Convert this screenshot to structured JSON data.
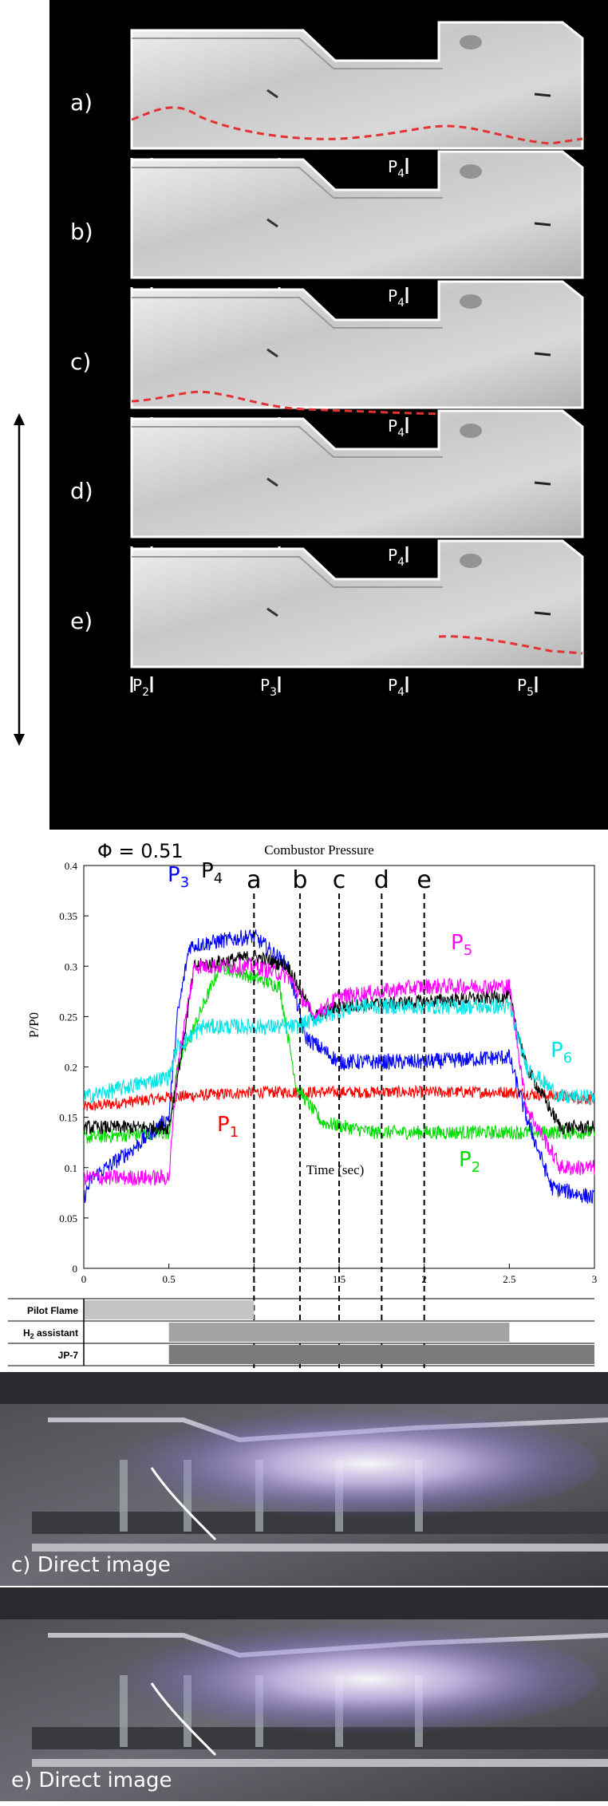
{
  "schlieren": {
    "panels": [
      {
        "label": "a)",
        "flame_front": true
      },
      {
        "label": "b)",
        "flame_front": false
      },
      {
        "label": "c)",
        "flame_front": true
      },
      {
        "label": "d)",
        "flame_front": false
      },
      {
        "label": "e)",
        "flame_front": true
      }
    ],
    "probe_labels": [
      {
        "base": "P",
        "sub": "2"
      },
      {
        "base": "P",
        "sub": "3"
      },
      {
        "base": "P",
        "sub": "4"
      },
      {
        "base": "P",
        "sub": "5"
      }
    ],
    "colors": {
      "background": "#000000",
      "flame_front": "#e23232",
      "probe_ticks": "#ffffff"
    }
  },
  "pressure_chart": {
    "phi_label": "Φ = 0.51",
    "colors": {
      "P1": "#ff0000",
      "P2": "#00dd00",
      "P3": "#0000ff",
      "P4": "#000000",
      "P5": "#ff00ff",
      "P6": "#00e5e5"
    }
  },
  "chart_data": {
    "type": "line",
    "title": "Combustor Pressure",
    "xlabel": "Time (sec)",
    "ylabel": "P/P0",
    "xlim": [
      0,
      3
    ],
    "ylim": [
      0,
      0.4
    ],
    "xticks": [
      "0",
      "0.5",
      "1",
      "1.5",
      "2",
      "2.5",
      "3"
    ],
    "yticks": [
      "0",
      "0.05",
      "0.1",
      "0.15",
      "0.2",
      "0.25",
      "0.3",
      "0.35",
      "0.4"
    ],
    "grid": false,
    "series": [
      {
        "name": "P1",
        "label_base": "P",
        "label_sub": "1",
        "color": "#ff0000",
        "noise": 0.006,
        "x": [
          0,
          0.5,
          1.0,
          1.5,
          2.0,
          2.5,
          3.0
        ],
        "y": [
          0.16,
          0.17,
          0.175,
          0.175,
          0.175,
          0.175,
          0.168
        ]
      },
      {
        "name": "P2",
        "label_base": "P",
        "label_sub": "2",
        "color": "#00dd00",
        "noise": 0.007,
        "x": [
          0,
          0.5,
          0.55,
          0.8,
          1.15,
          1.25,
          1.4,
          1.7,
          2.0,
          2.5,
          3.0
        ],
        "y": [
          0.13,
          0.135,
          0.2,
          0.3,
          0.28,
          0.18,
          0.145,
          0.135,
          0.135,
          0.135,
          0.135
        ]
      },
      {
        "name": "P3",
        "label_base": "P",
        "label_sub": "3",
        "color": "#0000ff",
        "noise": 0.008,
        "x": [
          0,
          0.05,
          0.3,
          0.5,
          0.55,
          0.62,
          0.8,
          1.0,
          1.2,
          1.3,
          1.5,
          2.0,
          2.5,
          2.6,
          2.75,
          3.0
        ],
        "y": [
          0.07,
          0.09,
          0.12,
          0.15,
          0.25,
          0.32,
          0.325,
          0.33,
          0.3,
          0.23,
          0.205,
          0.205,
          0.21,
          0.15,
          0.08,
          0.07
        ]
      },
      {
        "name": "P4",
        "label_base": "P",
        "label_sub": "4",
        "color": "#000000",
        "noise": 0.007,
        "x": [
          0,
          0.5,
          0.58,
          0.65,
          1.0,
          1.2,
          1.35,
          1.5,
          2.0,
          2.5,
          2.6,
          2.8,
          3.0
        ],
        "y": [
          0.14,
          0.14,
          0.22,
          0.3,
          0.31,
          0.3,
          0.25,
          0.26,
          0.265,
          0.27,
          0.2,
          0.14,
          0.14
        ]
      },
      {
        "name": "P5",
        "label_base": "P",
        "label_sub": "5",
        "color": "#ff00ff",
        "noise": 0.008,
        "x": [
          0,
          0.5,
          0.55,
          0.65,
          1.0,
          1.2,
          1.35,
          1.5,
          2.0,
          2.5,
          2.6,
          2.8,
          3.0
        ],
        "y": [
          0.09,
          0.09,
          0.2,
          0.3,
          0.3,
          0.29,
          0.25,
          0.27,
          0.28,
          0.28,
          0.16,
          0.1,
          0.1
        ]
      },
      {
        "name": "P6",
        "label_base": "P",
        "label_sub": "6",
        "color": "#00e5e5",
        "noise": 0.008,
        "x": [
          0,
          0.5,
          0.55,
          0.7,
          1.0,
          1.25,
          1.4,
          1.6,
          2.0,
          2.5,
          2.6,
          2.8,
          3.0
        ],
        "y": [
          0.17,
          0.19,
          0.22,
          0.24,
          0.24,
          0.24,
          0.25,
          0.26,
          0.26,
          0.26,
          0.2,
          0.17,
          0.17
        ]
      }
    ],
    "event_markers": [
      {
        "label": "a",
        "x": 1.0
      },
      {
        "label": "b",
        "x": 1.27
      },
      {
        "label": "c",
        "x": 1.5
      },
      {
        "label": "d",
        "x": 1.75
      },
      {
        "label": "e",
        "x": 2.0
      }
    ],
    "timeline": [
      {
        "label": "Pilot Flame",
        "label_base": "Pilot Flame",
        "label_sub": "",
        "label_tail": "",
        "start": 0,
        "end": 1.0,
        "color": "#c4c4c4"
      },
      {
        "label": "H2 assistant",
        "label_base": "H",
        "label_sub": "2",
        "label_tail": " assistant",
        "start": 0.5,
        "end": 2.5,
        "color": "#a3a3a3"
      },
      {
        "label": "JP-7",
        "label_base": "JP-7",
        "label_sub": "",
        "label_tail": "",
        "start": 0.5,
        "end": 3.0,
        "color": "#7b7b7b"
      }
    ]
  },
  "direct_images": [
    {
      "caption": "c) Direct image"
    },
    {
      "caption": "e) Direct image"
    }
  ]
}
